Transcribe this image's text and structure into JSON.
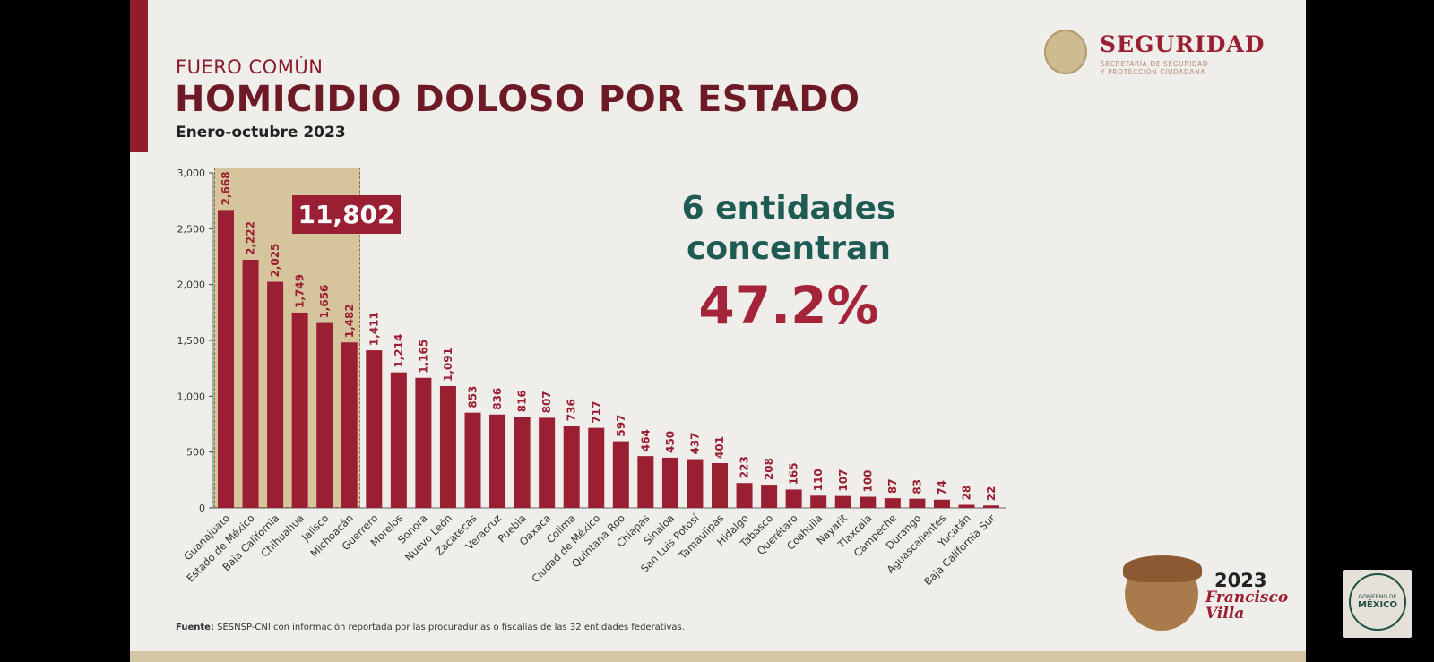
{
  "header": {
    "kicker": "FUERO COMÚN",
    "title": "HOMICIDIO DOLOSO POR ESTADO",
    "subtitle": "Enero-octubre 2023"
  },
  "logo": {
    "brand": "SEGURIDAD",
    "sub_line1": "SECRETARÍA DE SEGURIDAD",
    "sub_line2": "Y PROTECCIÓN CIUDADANA"
  },
  "highlight": {
    "total_label": "11,802",
    "count": 6
  },
  "callout": {
    "line1": "6 entidades",
    "line2": "concentran",
    "percent": "47.2%"
  },
  "footer": {
    "label": "Fuente:",
    "text": " SESNSP-CNI con información reportada por las procuradurías o fiscalías de las 32 entidades federativas."
  },
  "anniversary": {
    "year": "2023",
    "name": "Francisco Villa"
  },
  "gob": {
    "line1": "GOBIERNO DE",
    "line2": "MÉXICO"
  },
  "colors": {
    "bar": "#9a1f33",
    "highlight": "#d6c49c",
    "callout_text": "#1e5b52",
    "accent": "#a4243a"
  },
  "chart_data": {
    "type": "bar",
    "title": "HOMICIDIO DOLOSO POR ESTADO",
    "xlabel": "",
    "ylabel": "",
    "ylim": [
      0,
      3000
    ],
    "yticks": [
      "0",
      "500",
      "1,000",
      "1,500",
      "2,000",
      "2,500",
      "3,000"
    ],
    "grid": false,
    "categories": [
      "Guanajuato",
      "Estado de México",
      "Baja California",
      "Chihuahua",
      "Jalisco",
      "Michoacán",
      "Guerrero",
      "Morelos",
      "Sonora",
      "Nuevo León",
      "Zacatecas",
      "Veracruz",
      "Puebla",
      "Oaxaca",
      "Colima",
      "Ciudad de México",
      "Quintana Roo",
      "Chiapas",
      "Sinaloa",
      "San Luis Potosí",
      "Tamaulipas",
      "Hidalgo",
      "Tabasco",
      "Querétaro",
      "Coahuila",
      "Nayarit",
      "Tlaxcala",
      "Campeche",
      "Durango",
      "Aguascalientes",
      "Yucatán",
      "Baja California Sur"
    ],
    "values": [
      2668,
      2222,
      2025,
      1749,
      1656,
      1482,
      1411,
      1214,
      1165,
      1091,
      853,
      836,
      816,
      807,
      736,
      717,
      597,
      464,
      450,
      437,
      401,
      223,
      208,
      165,
      110,
      107,
      100,
      87,
      83,
      74,
      28,
      22
    ],
    "value_labels": [
      "2,668",
      "2,222",
      "2,025",
      "1,749",
      "1,656",
      "1,482",
      "1,411",
      "1,214",
      "1,165",
      "1,091",
      "853",
      "836",
      "816",
      "807",
      "736",
      "717",
      "597",
      "464",
      "450",
      "437",
      "401",
      "223",
      "208",
      "165",
      "110",
      "107",
      "100",
      "87",
      "83",
      "74",
      "28",
      "22"
    ]
  }
}
